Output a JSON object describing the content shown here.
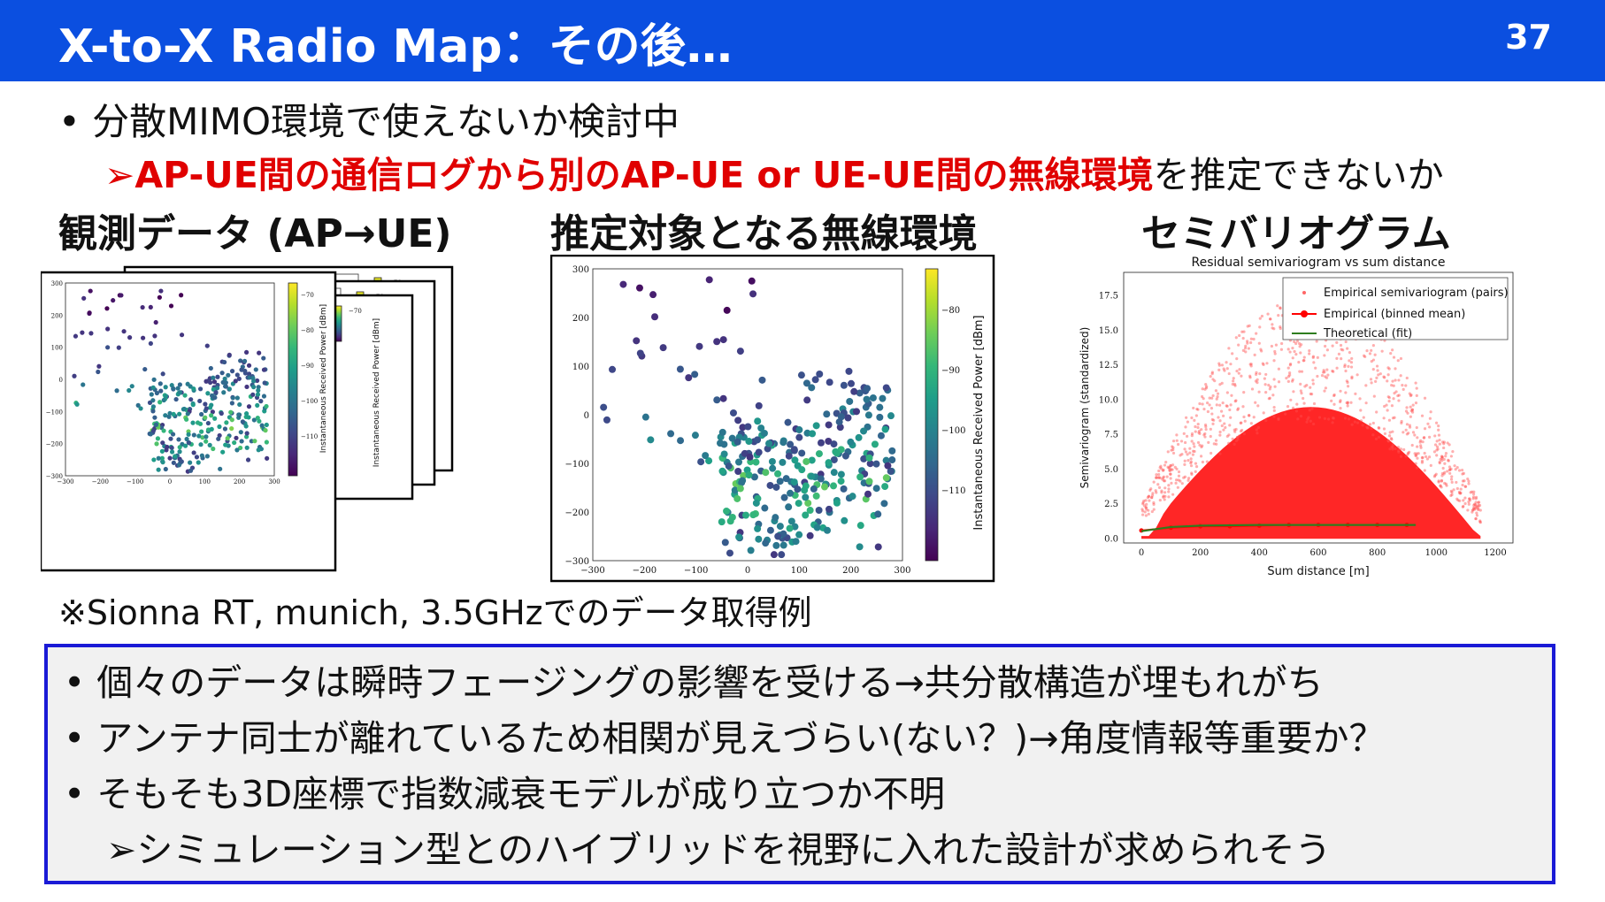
{
  "slide": {
    "title": "X-to-X Radio Map：その後…",
    "page_number": "37"
  },
  "bullets_top": {
    "main": "分散MIMO環境で使えないか検討中",
    "arrow": "➢",
    "red_text": "AP-UE間の通信ログから別のAP-UE or UE-UE間の無線環境",
    "tail_text": "を推定できないか"
  },
  "panels": {
    "left_title": "観測データ (AP→UE)",
    "middle_title": "推定対象となる無線環境",
    "right_title": "セミバリオグラム"
  },
  "note": "※Sionna RT, munich, 3.5GHzでのデータ取得例",
  "box_bullets": [
    "個々のデータは瞬時フェージングの影響を受ける→共分散構造が埋もれがち",
    "アンテナ同士が離れているため相関が見えづらい(ない？)→角度情報等重要か？",
    "そもそも3D座標で指数減衰モデルが成り立つか不明"
  ],
  "box_sub": "➢シミュレーション型とのハイブリッドを視野に入れた設計が求められそう",
  "chart_data": [
    {
      "type": "scatter",
      "name_ref": "observed",
      "title": "",
      "ylabel": "Instantaneous Received Power [dBm]",
      "x_ticks": [
        "−300",
        "−200",
        "−100",
        "0",
        "100",
        "200",
        "300"
      ],
      "y_ticks": [
        "300",
        "200",
        "100",
        "0",
        "−100",
        "−200",
        "−300"
      ],
      "colorbar_ticks": [
        "−70",
        "−80",
        "−90",
        "−100",
        "−110"
      ],
      "xlim": [
        -300,
        300
      ],
      "ylim": [
        -300,
        300
      ],
      "colorbar_range": [
        -118,
        -66
      ],
      "colormap": "viridis",
      "stacked_frames": 4
    },
    {
      "type": "scatter",
      "name_ref": "target",
      "title": "",
      "ylabel": "Instantaneous Received Power [dBm]",
      "x_ticks": [
        "−300",
        "−200",
        "−100",
        "0",
        "100",
        "200",
        "300"
      ],
      "y_ticks": [
        "300",
        "200",
        "100",
        "0",
        "−100",
        "−200",
        "−300"
      ],
      "colorbar_ticks": [
        "−80",
        "−90",
        "−100",
        "−110"
      ],
      "xlim": [
        -300,
        300
      ],
      "ylim": [
        -300,
        300
      ],
      "colorbar_range": [
        -118,
        -72
      ],
      "colormap": "viridis"
    },
    {
      "type": "scatter",
      "name_ref": "semivariogram",
      "title": "Residual semivariogram vs sum distance",
      "xlabel": "Sum distance [m]",
      "ylabel": "Semivariogram (standardized)",
      "x_ticks": [
        "0",
        "200",
        "400",
        "600",
        "800",
        "1000",
        "1200"
      ],
      "y_ticks": [
        "0.0",
        "2.5",
        "5.0",
        "7.5",
        "10.0",
        "12.5",
        "15.0",
        "17.5"
      ],
      "xlim": [
        -60,
        1260
      ],
      "ylim": [
        -0.3,
        19.2
      ],
      "legend_position": "top-right",
      "series": [
        {
          "name": "Empirical semivariogram (pairs)",
          "color": "#ff0000"
        },
        {
          "name": "Empirical (binned mean)",
          "color": "#ff0000",
          "x": [
            0,
            100,
            200,
            300,
            400,
            500,
            600,
            700,
            800,
            900
          ],
          "values": [
            0.6,
            0.8,
            0.9,
            0.9,
            0.95,
            1.0,
            1.0,
            1.0,
            1.0,
            1.0
          ]
        },
        {
          "name": "Theoretical (fit)",
          "color": "#2e7d1e",
          "x": [
            0,
            100,
            200,
            400,
            600,
            800,
            930
          ],
          "values": [
            0.55,
            0.85,
            0.95,
            1.0,
            1.0,
            1.0,
            1.0
          ]
        }
      ]
    }
  ]
}
